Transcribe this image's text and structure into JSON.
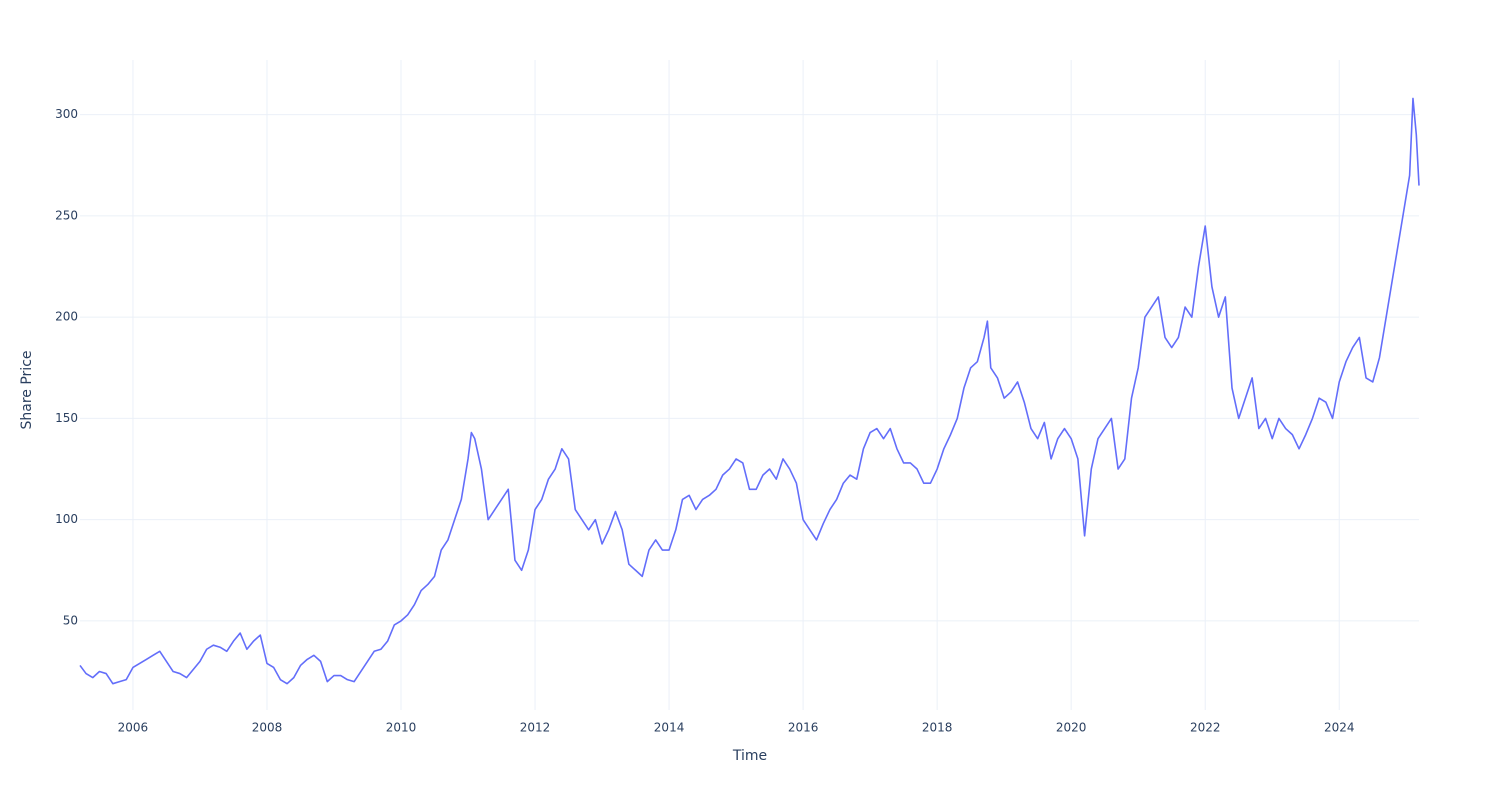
{
  "chart_data": {
    "type": "line",
    "x_label": "Time",
    "y_label": "Share Price",
    "color": "#636efa",
    "grid": true,
    "xlim": [
      2005.21,
      2025.19
    ],
    "xticks": [
      2006,
      2008,
      2010,
      2012,
      2014,
      2016,
      2018,
      2020,
      2022,
      2024
    ],
    "ylim": [
      6,
      327
    ],
    "yticks": [
      50,
      100,
      150,
      200,
      250,
      300
    ],
    "x": [
      2005.21,
      2005.3,
      2005.4,
      2005.5,
      2005.6,
      2005.7,
      2005.8,
      2005.9,
      2006.0,
      2006.1,
      2006.2,
      2006.3,
      2006.4,
      2006.5,
      2006.6,
      2006.7,
      2006.8,
      2006.9,
      2007.0,
      2007.1,
      2007.2,
      2007.3,
      2007.4,
      2007.5,
      2007.6,
      2007.7,
      2007.8,
      2007.9,
      2008.0,
      2008.1,
      2008.2,
      2008.3,
      2008.4,
      2008.5,
      2008.6,
      2008.7,
      2008.8,
      2008.9,
      2009.0,
      2009.1,
      2009.2,
      2009.3,
      2009.4,
      2009.5,
      2009.6,
      2009.7,
      2009.8,
      2009.9,
      2010.0,
      2010.1,
      2010.2,
      2010.3,
      2010.4,
      2010.5,
      2010.6,
      2010.7,
      2010.8,
      2010.9,
      2011.0,
      2011.05,
      2011.1,
      2011.2,
      2011.3,
      2011.4,
      2011.5,
      2011.6,
      2011.7,
      2011.8,
      2011.9,
      2012.0,
      2012.1,
      2012.2,
      2012.3,
      2012.4,
      2012.5,
      2012.6,
      2012.7,
      2012.8,
      2012.9,
      2013.0,
      2013.1,
      2013.2,
      2013.3,
      2013.4,
      2013.5,
      2013.6,
      2013.7,
      2013.8,
      2013.9,
      2014.0,
      2014.1,
      2014.2,
      2014.3,
      2014.4,
      2014.5,
      2014.6,
      2014.7,
      2014.8,
      2014.9,
      2015.0,
      2015.1,
      2015.2,
      2015.3,
      2015.4,
      2015.5,
      2015.6,
      2015.7,
      2015.8,
      2015.9,
      2016.0,
      2016.1,
      2016.2,
      2016.3,
      2016.4,
      2016.5,
      2016.6,
      2016.7,
      2016.8,
      2016.9,
      2017.0,
      2017.1,
      2017.2,
      2017.3,
      2017.4,
      2017.5,
      2017.6,
      2017.7,
      2017.8,
      2017.9,
      2018.0,
      2018.1,
      2018.2,
      2018.3,
      2018.4,
      2018.5,
      2018.6,
      2018.7,
      2018.75,
      2018.8,
      2018.9,
      2019.0,
      2019.1,
      2019.2,
      2019.3,
      2019.4,
      2019.5,
      2019.6,
      2019.7,
      2019.8,
      2019.9,
      2020.0,
      2020.1,
      2020.2,
      2020.3,
      2020.4,
      2020.5,
      2020.6,
      2020.7,
      2020.8,
      2020.9,
      2021.0,
      2021.1,
      2021.2,
      2021.3,
      2021.4,
      2021.5,
      2021.6,
      2021.7,
      2021.8,
      2021.9,
      2022.0,
      2022.1,
      2022.2,
      2022.3,
      2022.4,
      2022.5,
      2022.6,
      2022.7,
      2022.8,
      2022.9,
      2023.0,
      2023.1,
      2023.2,
      2023.3,
      2023.4,
      2023.5,
      2023.6,
      2023.7,
      2023.8,
      2023.9,
      2024.0,
      2024.1,
      2024.2,
      2024.3,
      2024.4,
      2024.5,
      2024.6,
      2024.7,
      2024.8,
      2024.9,
      2025.0,
      2025.05,
      2025.1,
      2025.15,
      2025.19
    ],
    "values": [
      28,
      24,
      22,
      25,
      24,
      19,
      20,
      21,
      27,
      29,
      31,
      33,
      35,
      30,
      25,
      24,
      22,
      26,
      30,
      36,
      38,
      37,
      35,
      40,
      44,
      36,
      40,
      43,
      29,
      27,
      21,
      19,
      22,
      28,
      31,
      33,
      30,
      20,
      23,
      23,
      21,
      20,
      25,
      30,
      35,
      36,
      40,
      48,
      50,
      53,
      58,
      65,
      68,
      72,
      85,
      90,
      100,
      110,
      130,
      143,
      140,
      125,
      100,
      105,
      110,
      115,
      80,
      75,
      85,
      105,
      110,
      120,
      125,
      135,
      130,
      105,
      100,
      95,
      100,
      88,
      95,
      104,
      95,
      78,
      75,
      72,
      85,
      90,
      85,
      85,
      95,
      110,
      112,
      105,
      110,
      112,
      115,
      122,
      125,
      130,
      128,
      115,
      115,
      122,
      125,
      120,
      130,
      125,
      118,
      100,
      95,
      90,
      98,
      105,
      110,
      118,
      122,
      120,
      135,
      143,
      145,
      140,
      145,
      135,
      128,
      128,
      125,
      118,
      118,
      125,
      135,
      142,
      150,
      165,
      175,
      178,
      190,
      198,
      175,
      170,
      160,
      163,
      168,
      158,
      145,
      140,
      148,
      130,
      140,
      145,
      140,
      130,
      92,
      125,
      140,
      145,
      150,
      125,
      130,
      160,
      175,
      200,
      205,
      210,
      190,
      185,
      190,
      205,
      200,
      225,
      245,
      215,
      200,
      210,
      165,
      150,
      160,
      170,
      145,
      150,
      140,
      150,
      145,
      142,
      135,
      142,
      150,
      160,
      158,
      150,
      168,
      178,
      185,
      190,
      170,
      168,
      180,
      200,
      220,
      240,
      260,
      270,
      308,
      290,
      265
    ]
  }
}
